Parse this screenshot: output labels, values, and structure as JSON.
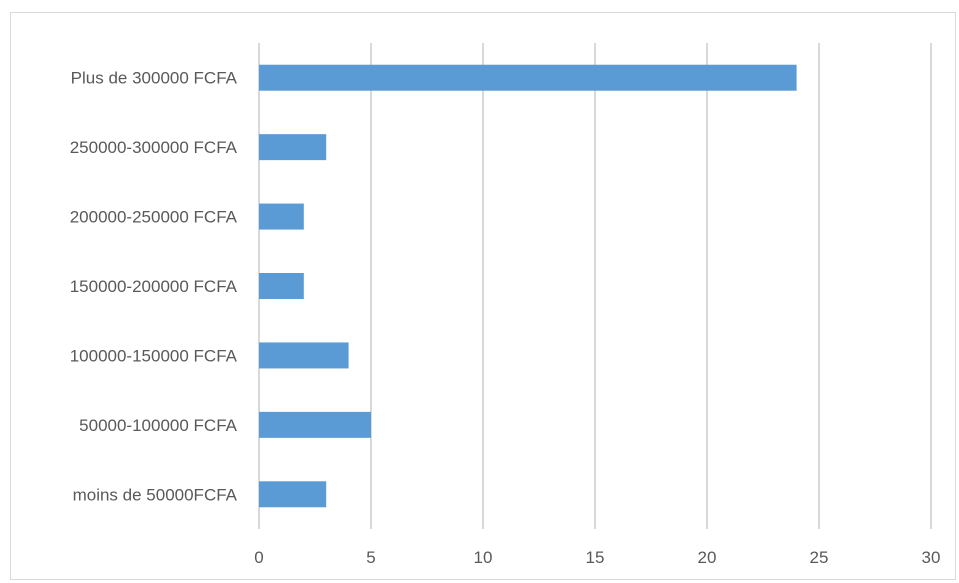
{
  "chart_data": {
    "type": "bar",
    "orientation": "horizontal",
    "categories": [
      "Plus de 300000 FCFA",
      "250000-300000 FCFA",
      "200000-250000 FCFA",
      "150000-200000 FCFA",
      "100000-150000 FCFA",
      "50000-100000 FCFA",
      "moins de 50000FCFA"
    ],
    "values": [
      24,
      3,
      2,
      2,
      4,
      5,
      3
    ],
    "xlim": [
      0,
      30
    ],
    "xticks": [
      0,
      5,
      10,
      15,
      20,
      25,
      30
    ],
    "grid": true,
    "bar_color": "#5b9bd5",
    "grid_color": "#d9d9d9",
    "label_color": "#595959"
  }
}
